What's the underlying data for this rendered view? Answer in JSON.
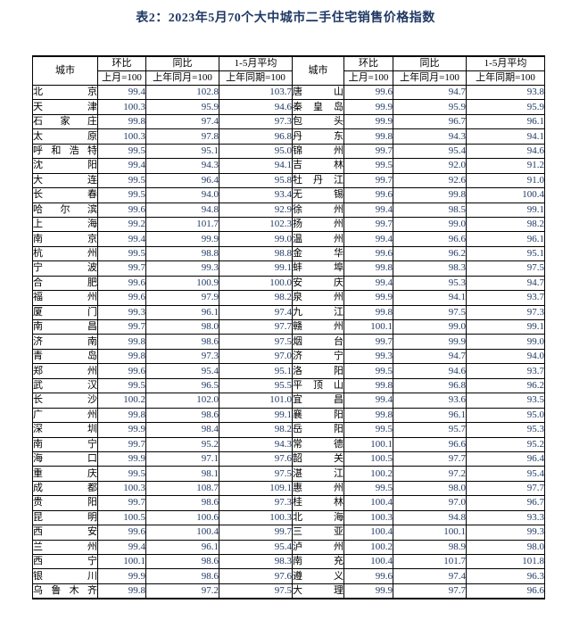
{
  "title": "表2：2023年5月70个大中城市二手住宅销售价格指数",
  "colors": {
    "title_text": "#1f3864",
    "number_text": "#1f3864",
    "label_text": "#000000",
    "border": "#000000",
    "background": "#ffffff"
  },
  "table": {
    "city_header": "城市",
    "column_groups": [
      {
        "label": "环比",
        "sublabel": "上月=100"
      },
      {
        "label": "同比",
        "sublabel": "上年同月=100"
      },
      {
        "label": "1-5月平均",
        "sublabel": "上年同期=100"
      }
    ],
    "left_rows": [
      {
        "city": "北京",
        "mom": "99.4",
        "yoy": "102.8",
        "avg": "103.7"
      },
      {
        "city": "天津",
        "mom": "100.3",
        "yoy": "95.9",
        "avg": "94.6"
      },
      {
        "city": "石家庄",
        "mom": "99.8",
        "yoy": "97.4",
        "avg": "97.3"
      },
      {
        "city": "太原",
        "mom": "100.3",
        "yoy": "97.8",
        "avg": "96.8"
      },
      {
        "city": "呼和浩特",
        "mom": "99.5",
        "yoy": "95.1",
        "avg": "95.0"
      },
      {
        "city": "沈阳",
        "mom": "99.4",
        "yoy": "94.3",
        "avg": "94.1"
      },
      {
        "city": "大连",
        "mom": "99.5",
        "yoy": "96.4",
        "avg": "95.8"
      },
      {
        "city": "长春",
        "mom": "99.5",
        "yoy": "94.0",
        "avg": "93.4"
      },
      {
        "city": "哈尔滨",
        "mom": "99.6",
        "yoy": "94.8",
        "avg": "92.9"
      },
      {
        "city": "上海",
        "mom": "99.2",
        "yoy": "101.7",
        "avg": "102.3"
      },
      {
        "city": "南京",
        "mom": "99.4",
        "yoy": "99.9",
        "avg": "99.0"
      },
      {
        "city": "杭州",
        "mom": "99.5",
        "yoy": "98.8",
        "avg": "98.8"
      },
      {
        "city": "宁波",
        "mom": "99.7",
        "yoy": "99.3",
        "avg": "99.1"
      },
      {
        "city": "合肥",
        "mom": "99.6",
        "yoy": "100.9",
        "avg": "100.0"
      },
      {
        "city": "福州",
        "mom": "99.6",
        "yoy": "97.9",
        "avg": "98.2"
      },
      {
        "city": "厦门",
        "mom": "99.3",
        "yoy": "96.1",
        "avg": "97.4"
      },
      {
        "city": "南昌",
        "mom": "99.7",
        "yoy": "98.0",
        "avg": "97.7"
      },
      {
        "city": "济南",
        "mom": "99.8",
        "yoy": "98.6",
        "avg": "97.5"
      },
      {
        "city": "青岛",
        "mom": "99.8",
        "yoy": "97.3",
        "avg": "97.0"
      },
      {
        "city": "郑州",
        "mom": "99.6",
        "yoy": "95.4",
        "avg": "95.1"
      },
      {
        "city": "武汉",
        "mom": "99.5",
        "yoy": "96.5",
        "avg": "95.5"
      },
      {
        "city": "长沙",
        "mom": "100.2",
        "yoy": "102.0",
        "avg": "101.0"
      },
      {
        "city": "广州",
        "mom": "99.8",
        "yoy": "98.6",
        "avg": "99.1"
      },
      {
        "city": "深圳",
        "mom": "99.9",
        "yoy": "98.4",
        "avg": "98.2"
      },
      {
        "city": "南宁",
        "mom": "99.7",
        "yoy": "95.2",
        "avg": "94.3"
      },
      {
        "city": "海口",
        "mom": "99.9",
        "yoy": "97.1",
        "avg": "97.6"
      },
      {
        "city": "重庆",
        "mom": "99.5",
        "yoy": "98.1",
        "avg": "97.5"
      },
      {
        "city": "成都",
        "mom": "100.3",
        "yoy": "108.7",
        "avg": "109.1"
      },
      {
        "city": "贵阳",
        "mom": "99.7",
        "yoy": "98.6",
        "avg": "97.3"
      },
      {
        "city": "昆明",
        "mom": "100.5",
        "yoy": "100.6",
        "avg": "100.3"
      },
      {
        "city": "西安",
        "mom": "99.6",
        "yoy": "100.4",
        "avg": "99.7"
      },
      {
        "city": "兰州",
        "mom": "99.4",
        "yoy": "96.1",
        "avg": "95.4"
      },
      {
        "city": "西宁",
        "mom": "100.1",
        "yoy": "98.6",
        "avg": "98.3"
      },
      {
        "city": "银川",
        "mom": "99.9",
        "yoy": "98.6",
        "avg": "97.6"
      },
      {
        "city": "乌鲁木齐",
        "mom": "99.8",
        "yoy": "97.2",
        "avg": "97.5"
      }
    ],
    "right_rows": [
      {
        "city": "唐山",
        "mom": "99.6",
        "yoy": "94.7",
        "avg": "93.8"
      },
      {
        "city": "秦皇岛",
        "mom": "99.9",
        "yoy": "95.9",
        "avg": "95.9"
      },
      {
        "city": "包头",
        "mom": "99.9",
        "yoy": "96.7",
        "avg": "96.1"
      },
      {
        "city": "丹东",
        "mom": "99.8",
        "yoy": "94.3",
        "avg": "94.1"
      },
      {
        "city": "锦州",
        "mom": "99.7",
        "yoy": "95.4",
        "avg": "94.6"
      },
      {
        "city": "吉林",
        "mom": "99.5",
        "yoy": "92.0",
        "avg": "91.2"
      },
      {
        "city": "牡丹江",
        "mom": "99.7",
        "yoy": "92.6",
        "avg": "91.0"
      },
      {
        "city": "无锡",
        "mom": "99.6",
        "yoy": "99.8",
        "avg": "100.4"
      },
      {
        "city": "徐州",
        "mom": "99.4",
        "yoy": "98.5",
        "avg": "99.1"
      },
      {
        "city": "扬州",
        "mom": "99.7",
        "yoy": "99.0",
        "avg": "98.2"
      },
      {
        "city": "温州",
        "mom": "99.4",
        "yoy": "96.6",
        "avg": "96.1"
      },
      {
        "city": "金华",
        "mom": "99.6",
        "yoy": "96.2",
        "avg": "95.1"
      },
      {
        "city": "蚌埠",
        "mom": "99.8",
        "yoy": "98.3",
        "avg": "97.5"
      },
      {
        "city": "安庆",
        "mom": "99.4",
        "yoy": "95.3",
        "avg": "94.7"
      },
      {
        "city": "泉州",
        "mom": "99.9",
        "yoy": "94.1",
        "avg": "93.7"
      },
      {
        "city": "九江",
        "mom": "99.8",
        "yoy": "97.5",
        "avg": "97.3"
      },
      {
        "city": "赣州",
        "mom": "100.1",
        "yoy": "99.0",
        "avg": "99.1"
      },
      {
        "city": "烟台",
        "mom": "99.7",
        "yoy": "99.9",
        "avg": "99.0"
      },
      {
        "city": "济宁",
        "mom": "99.3",
        "yoy": "94.7",
        "avg": "94.0"
      },
      {
        "city": "洛阳",
        "mom": "99.5",
        "yoy": "94.6",
        "avg": "93.7"
      },
      {
        "city": "平顶山",
        "mom": "99.8",
        "yoy": "96.8",
        "avg": "96.2"
      },
      {
        "city": "宜昌",
        "mom": "99.4",
        "yoy": "93.6",
        "avg": "93.5"
      },
      {
        "city": "襄阳",
        "mom": "99.8",
        "yoy": "96.1",
        "avg": "95.0"
      },
      {
        "city": "岳阳",
        "mom": "99.5",
        "yoy": "95.7",
        "avg": "95.3"
      },
      {
        "city": "常德",
        "mom": "100.1",
        "yoy": "96.6",
        "avg": "95.2"
      },
      {
        "city": "韶关",
        "mom": "100.5",
        "yoy": "97.7",
        "avg": "96.4"
      },
      {
        "city": "湛江",
        "mom": "100.2",
        "yoy": "97.2",
        "avg": "95.4"
      },
      {
        "city": "惠州",
        "mom": "99.5",
        "yoy": "98.0",
        "avg": "97.7"
      },
      {
        "city": "桂林",
        "mom": "100.4",
        "yoy": "97.0",
        "avg": "96.7"
      },
      {
        "city": "北海",
        "mom": "100.3",
        "yoy": "94.8",
        "avg": "93.3"
      },
      {
        "city": "三亚",
        "mom": "100.4",
        "yoy": "100.1",
        "avg": "99.3"
      },
      {
        "city": "泸州",
        "mom": "100.2",
        "yoy": "98.9",
        "avg": "98.0"
      },
      {
        "city": "南充",
        "mom": "100.4",
        "yoy": "101.7",
        "avg": "101.8"
      },
      {
        "city": "遵义",
        "mom": "99.6",
        "yoy": "97.4",
        "avg": "96.3"
      },
      {
        "city": "大理",
        "mom": "99.9",
        "yoy": "97.7",
        "avg": "96.6"
      }
    ]
  }
}
